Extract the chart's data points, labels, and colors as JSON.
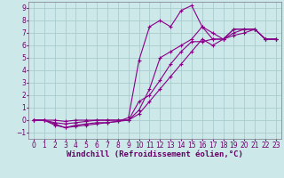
{
  "title": "",
  "xlabel": "Windchill (Refroidissement éolien,°C)",
  "ylabel": "",
  "bg_color": "#cce8e8",
  "grid_color": "#aacccc",
  "line_color": "#880088",
  "xlim": [
    -0.5,
    23.5
  ],
  "ylim": [
    -1.5,
    9.5
  ],
  "xticks": [
    0,
    1,
    2,
    3,
    4,
    5,
    6,
    7,
    8,
    9,
    10,
    11,
    12,
    13,
    14,
    15,
    16,
    17,
    18,
    19,
    20,
    21,
    22,
    23
  ],
  "yticks": [
    -1,
    0,
    1,
    2,
    3,
    4,
    5,
    6,
    7,
    8,
    9
  ],
  "lines": [
    {
      "x": [
        0,
        1,
        2,
        3,
        4,
        5,
        6,
        7,
        8,
        9,
        10,
        11,
        12,
        13,
        14,
        15,
        16,
        17,
        18,
        19,
        20,
        21,
        22,
        23
      ],
      "y": [
        0,
        0,
        -0.4,
        -0.6,
        -0.4,
        -0.3,
        -0.2,
        -0.2,
        -0.1,
        0.2,
        4.8,
        7.5,
        8.0,
        7.5,
        8.8,
        9.2,
        7.5,
        7.0,
        6.5,
        7.3,
        7.3,
        7.3,
        6.5,
        6.5
      ]
    },
    {
      "x": [
        0,
        1,
        2,
        3,
        4,
        5,
        6,
        7,
        8,
        9,
        10,
        11,
        12,
        13,
        14,
        15,
        16,
        17,
        18,
        19,
        20,
        21,
        22,
        23
      ],
      "y": [
        0,
        0,
        -0.2,
        -0.3,
        -0.2,
        -0.1,
        0,
        0,
        0,
        0,
        1.5,
        2.0,
        3.2,
        4.5,
        5.5,
        6.3,
        6.3,
        6.5,
        6.5,
        7.0,
        7.3,
        7.3,
        6.5,
        6.5
      ]
    },
    {
      "x": [
        0,
        1,
        2,
        3,
        4,
        5,
        6,
        7,
        8,
        9,
        10,
        11,
        12,
        13,
        14,
        15,
        16,
        17,
        18,
        19,
        20,
        21,
        22,
        23
      ],
      "y": [
        0,
        0,
        -0.3,
        -0.6,
        -0.5,
        -0.4,
        -0.3,
        -0.2,
        -0.1,
        0,
        0.5,
        1.5,
        2.5,
        3.5,
        4.5,
        5.5,
        6.5,
        6.0,
        6.5,
        6.8,
        7.0,
        7.3,
        6.5,
        6.5
      ]
    },
    {
      "x": [
        0,
        1,
        2,
        3,
        4,
        5,
        6,
        7,
        8,
        9,
        10,
        11,
        12,
        13,
        14,
        15,
        16,
        17,
        18,
        19,
        20,
        21,
        22,
        23
      ],
      "y": [
        0,
        0,
        0,
        -0.1,
        0,
        0,
        0,
        0,
        0,
        0,
        0.8,
        2.5,
        5.0,
        5.5,
        6.0,
        6.5,
        7.5,
        6.5,
        6.5,
        7.3,
        7.3,
        7.3,
        6.5,
        6.5
      ]
    }
  ],
  "marker": "+",
  "markersize": 3,
  "linewidth": 0.8,
  "xlabel_fontsize": 6.5,
  "tick_fontsize": 5.5
}
